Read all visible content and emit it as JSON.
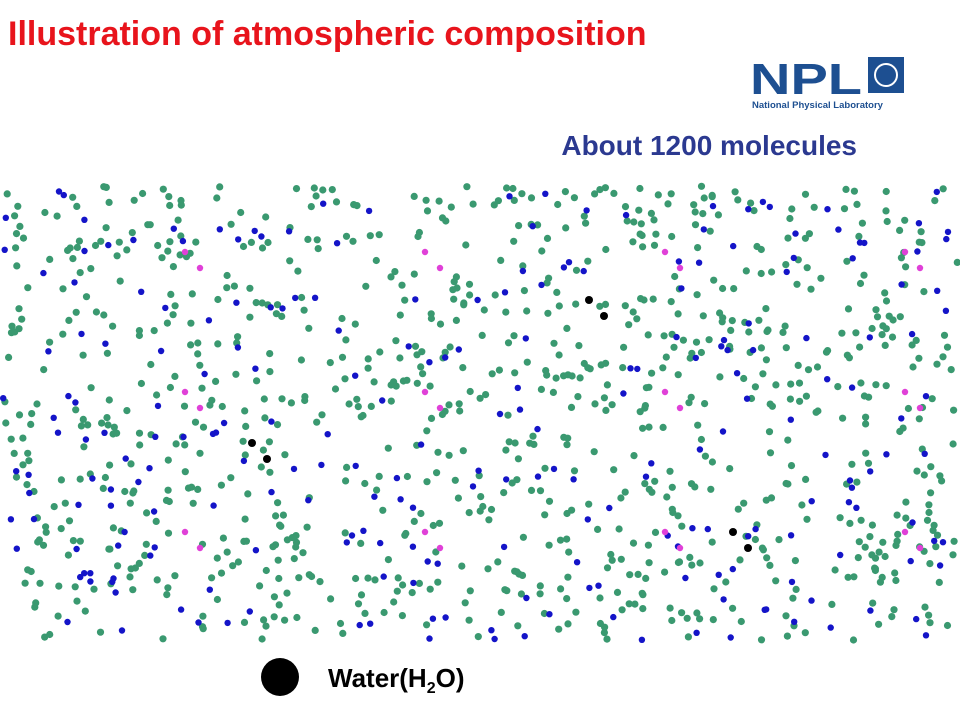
{
  "title": "Illustration of atmospheric composition",
  "logo": {
    "name": "NPL",
    "subtitle": "National Physical Laboratory"
  },
  "caption": "About 1200 molecules",
  "legend": {
    "label_parts": [
      "Water(H",
      "2",
      "O)"
    ]
  }
}
